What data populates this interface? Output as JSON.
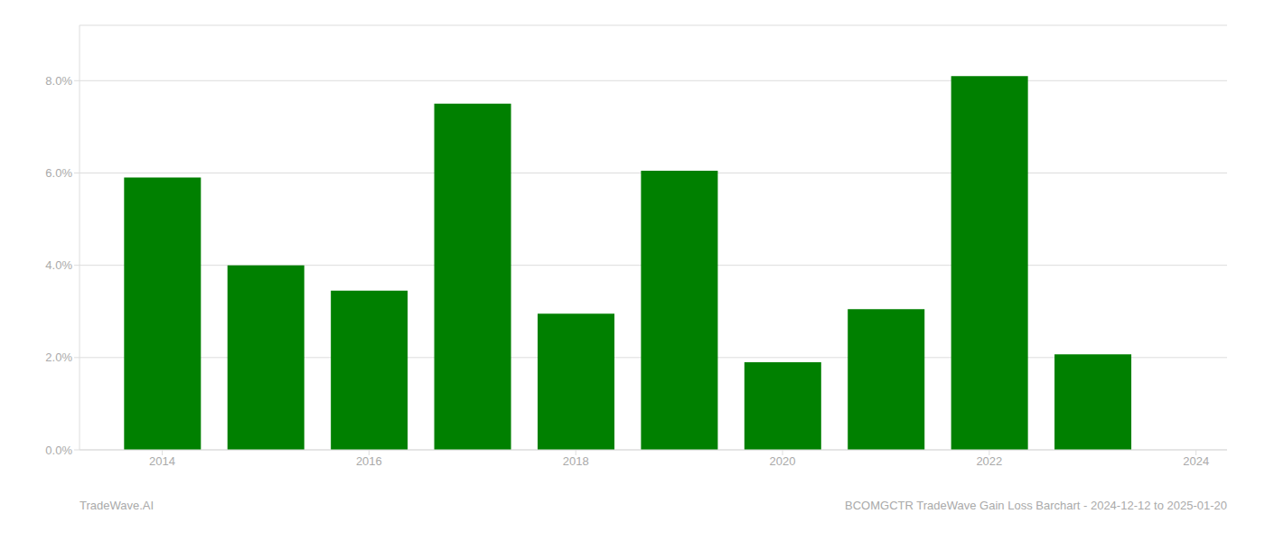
{
  "chart_data": {
    "type": "bar",
    "x": [
      2014,
      2015,
      2016,
      2017,
      2018,
      2019,
      2020,
      2021,
      2022,
      2023
    ],
    "values": [
      0.059,
      0.04,
      0.0345,
      0.075,
      0.0295,
      0.0605,
      0.019,
      0.0305,
      0.081,
      0.0207
    ],
    "color": "#008000",
    "xlim": [
      2013.2,
      2024.3
    ],
    "xticks": [
      2014,
      2016,
      2018,
      2020,
      2022,
      2024
    ],
    "ylim": [
      0,
      0.092
    ],
    "yticks": [
      {
        "value": 0.0,
        "label": "0.0%"
      },
      {
        "value": 0.02,
        "label": "2.0%"
      },
      {
        "value": 0.04,
        "label": "4.0%"
      },
      {
        "value": 0.06,
        "label": "6.0%"
      },
      {
        "value": 0.08,
        "label": "8.0%"
      }
    ],
    "grid": true,
    "annotations": [
      "TradeWave.AI",
      "BCOMGCTR TradeWave Gain Loss Barchart - 2024-12-12 to 2025-01-20"
    ]
  }
}
